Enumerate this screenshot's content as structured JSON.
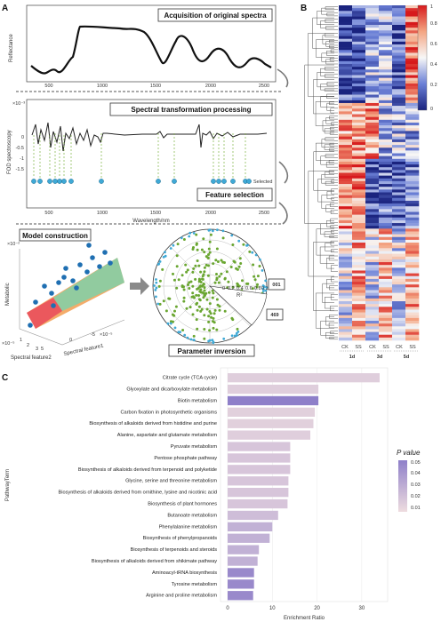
{
  "panels": {
    "a": {
      "letter": "A",
      "step1": "Acquisition of original spectra",
      "step2": "Spectral transformation processing",
      "step3": "Feature selection",
      "step4": "Model construction",
      "step5": "Parameter inversion",
      "reflectance_ylabel": "Reflectance",
      "fod_ylabel": "FOD spectroscopy",
      "fod_exponent": "×10⁻³",
      "wavelength_label": "Wavelength/nm",
      "x_ticks": [
        "500",
        "1000",
        "1500",
        "2000",
        "2500"
      ],
      "fod_y_ticks": [
        "0",
        "-0.5",
        "-1",
        "-1.5"
      ],
      "selected_label": "Selected",
      "metabolic_label": "Metabolic",
      "feature1_label": "Spectral feature1",
      "feature2_label": "Spectral feature2",
      "z_exponent": "×10⁻²",
      "x_exponent": "×10⁻⁵",
      "y_exponent": "×10⁻⁵",
      "feature2_ticks": [
        "1",
        "2",
        "3",
        "5"
      ],
      "feature1_ticks": [
        "0",
        "-5"
      ],
      "polar_ticks": [
        "0",
        "0.2",
        "0.4",
        "0.6",
        "0.8",
        "0.1"
      ],
      "r2_label": "R²",
      "callout_top": "001",
      "callout_bottom": "469"
    },
    "b": {
      "letter": "B",
      "colorbar_ticks": [
        "1",
        "0.8",
        "0.6",
        "0.4",
        "0.2",
        "0"
      ],
      "colorbar_colors": [
        "#d7191c",
        "#fdae61",
        "#f7f7f7",
        "#abd9e9",
        "#2c3eb0",
        "#1a237e"
      ],
      "columns": [
        "CK",
        "SS",
        "CK",
        "SS",
        "CK",
        "SS"
      ],
      "groups": [
        "1d",
        "3d",
        "5d"
      ]
    },
    "c": {
      "letter": "C",
      "ylabel": "PathwayTerm",
      "xlabel": "Enrichment Ratio",
      "x_ticks": [
        "0",
        "10",
        "20",
        "30"
      ],
      "legend_title": "P value",
      "legend_ticks": [
        "0.05",
        "0.04",
        "0.03",
        "0.02",
        "0.01"
      ],
      "legend_colors": {
        "high": "#8e7fc9",
        "low": "#eedcdf"
      }
    }
  },
  "chart_data": {
    "type": "bar",
    "orientation": "horizontal",
    "xlabel": "Enrichment Ratio",
    "ylabel": "PathwayTerm",
    "xlim": [
      0,
      35
    ],
    "categories": [
      "Citrate cycle (TCA cycle)",
      "Glyoxylate and dicarboxylate metabolism",
      "Biotin metabolism",
      "Carbon fixation in photosynthetic organisms",
      "Biosynthesis of alkaloids derived from histidine and purine",
      "Alanine, aspartate and glutamate metabolism",
      "Pyruvate metabolism",
      "Pentose phosphate pathway",
      "Biosynthesis of alkaloids derived from terpenoid and polyketide",
      "Glycine, serine and threonine metabolism",
      "Biosynthesis of alkaloids derived from ornithine, lysine and nicotinic acid",
      "Biosynthesis of plant hormones",
      "Butanoate metabolism",
      "Phenylalanine metabolism",
      "Biosynthesis of phenylpropanoids",
      "Biosynthesis of terpenoids and steroids",
      "Biosynthesis of alkaloids derived from shikimate pathway",
      "Aminoacyl-tRNA biosynthesis",
      "Tyrosine metabolism",
      "Arginine and proline metabolism"
    ],
    "values": [
      34,
      20.3,
      20.3,
      19.5,
      19.2,
      18.5,
      14,
      14,
      14,
      13.6,
      13.6,
      13.4,
      11.3,
      10,
      9.4,
      7,
      6.7,
      5.9,
      5.9,
      5.7
    ],
    "p_values": [
      0.012,
      0.012,
      0.05,
      0.011,
      0.011,
      0.012,
      0.016,
      0.016,
      0.016,
      0.016,
      0.016,
      0.016,
      0.02,
      0.026,
      0.026,
      0.026,
      0.026,
      0.045,
      0.045,
      0.045
    ],
    "color_scale": {
      "title": "P value",
      "range": [
        0.005,
        0.05
      ]
    }
  }
}
